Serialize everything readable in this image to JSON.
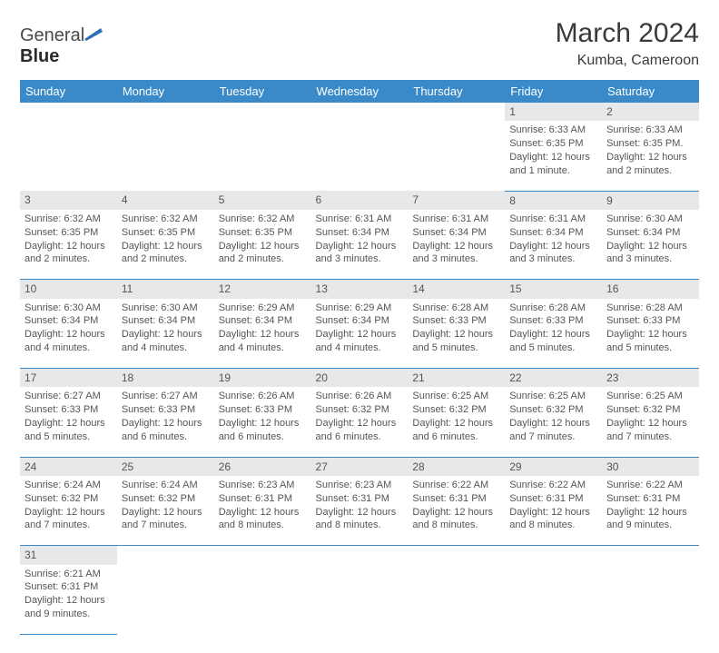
{
  "logo": {
    "word1": "General",
    "word2": "Blue"
  },
  "title": "March 2024",
  "subtitle": "Kumba, Cameroon",
  "colors": {
    "header_bg": "#3a8ac9",
    "header_text": "#ffffff",
    "daynum_bg": "#e8e8e8",
    "cell_border": "#3a8ac9",
    "text": "#555555",
    "logo_flag": "#2e6fb5"
  },
  "weekdays": [
    "Sunday",
    "Monday",
    "Tuesday",
    "Wednesday",
    "Thursday",
    "Friday",
    "Saturday"
  ],
  "weeks": [
    [
      null,
      null,
      null,
      null,
      null,
      {
        "n": "1",
        "lines": [
          "Sunrise: 6:33 AM",
          "Sunset: 6:35 PM",
          "Daylight: 12 hours",
          "and 1 minute."
        ]
      },
      {
        "n": "2",
        "lines": [
          "Sunrise: 6:33 AM",
          "Sunset: 6:35 PM.",
          "Daylight: 12 hours",
          "and 2 minutes."
        ]
      }
    ],
    [
      {
        "n": "3",
        "lines": [
          "Sunrise: 6:32 AM",
          "Sunset: 6:35 PM",
          "Daylight: 12 hours",
          "and 2 minutes."
        ]
      },
      {
        "n": "4",
        "lines": [
          "Sunrise: 6:32 AM",
          "Sunset: 6:35 PM",
          "Daylight: 12 hours",
          "and 2 minutes."
        ]
      },
      {
        "n": "5",
        "lines": [
          "Sunrise: 6:32 AM",
          "Sunset: 6:35 PM",
          "Daylight: 12 hours",
          "and 2 minutes."
        ]
      },
      {
        "n": "6",
        "lines": [
          "Sunrise: 6:31 AM",
          "Sunset: 6:34 PM",
          "Daylight: 12 hours",
          "and 3 minutes."
        ]
      },
      {
        "n": "7",
        "lines": [
          "Sunrise: 6:31 AM",
          "Sunset: 6:34 PM",
          "Daylight: 12 hours",
          "and 3 minutes."
        ]
      },
      {
        "n": "8",
        "lines": [
          "Sunrise: 6:31 AM",
          "Sunset: 6:34 PM",
          "Daylight: 12 hours",
          "and 3 minutes."
        ]
      },
      {
        "n": "9",
        "lines": [
          "Sunrise: 6:30 AM",
          "Sunset: 6:34 PM",
          "Daylight: 12 hours",
          "and 3 minutes."
        ]
      }
    ],
    [
      {
        "n": "10",
        "lines": [
          "Sunrise: 6:30 AM",
          "Sunset: 6:34 PM",
          "Daylight: 12 hours",
          "and 4 minutes."
        ]
      },
      {
        "n": "11",
        "lines": [
          "Sunrise: 6:30 AM",
          "Sunset: 6:34 PM",
          "Daylight: 12 hours",
          "and 4 minutes."
        ]
      },
      {
        "n": "12",
        "lines": [
          "Sunrise: 6:29 AM",
          "Sunset: 6:34 PM",
          "Daylight: 12 hours",
          "and 4 minutes."
        ]
      },
      {
        "n": "13",
        "lines": [
          "Sunrise: 6:29 AM",
          "Sunset: 6:34 PM",
          "Daylight: 12 hours",
          "and 4 minutes."
        ]
      },
      {
        "n": "14",
        "lines": [
          "Sunrise: 6:28 AM",
          "Sunset: 6:33 PM",
          "Daylight: 12 hours",
          "and 5 minutes."
        ]
      },
      {
        "n": "15",
        "lines": [
          "Sunrise: 6:28 AM",
          "Sunset: 6:33 PM",
          "Daylight: 12 hours",
          "and 5 minutes."
        ]
      },
      {
        "n": "16",
        "lines": [
          "Sunrise: 6:28 AM",
          "Sunset: 6:33 PM",
          "Daylight: 12 hours",
          "and 5 minutes."
        ]
      }
    ],
    [
      {
        "n": "17",
        "lines": [
          "Sunrise: 6:27 AM",
          "Sunset: 6:33 PM",
          "Daylight: 12 hours",
          "and 5 minutes."
        ]
      },
      {
        "n": "18",
        "lines": [
          "Sunrise: 6:27 AM",
          "Sunset: 6:33 PM",
          "Daylight: 12 hours",
          "and 6 minutes."
        ]
      },
      {
        "n": "19",
        "lines": [
          "Sunrise: 6:26 AM",
          "Sunset: 6:33 PM",
          "Daylight: 12 hours",
          "and 6 minutes."
        ]
      },
      {
        "n": "20",
        "lines": [
          "Sunrise: 6:26 AM",
          "Sunset: 6:32 PM",
          "Daylight: 12 hours",
          "and 6 minutes."
        ]
      },
      {
        "n": "21",
        "lines": [
          "Sunrise: 6:25 AM",
          "Sunset: 6:32 PM",
          "Daylight: 12 hours",
          "and 6 minutes."
        ]
      },
      {
        "n": "22",
        "lines": [
          "Sunrise: 6:25 AM",
          "Sunset: 6:32 PM",
          "Daylight: 12 hours",
          "and 7 minutes."
        ]
      },
      {
        "n": "23",
        "lines": [
          "Sunrise: 6:25 AM",
          "Sunset: 6:32 PM",
          "Daylight: 12 hours",
          "and 7 minutes."
        ]
      }
    ],
    [
      {
        "n": "24",
        "lines": [
          "Sunrise: 6:24 AM",
          "Sunset: 6:32 PM",
          "Daylight: 12 hours",
          "and 7 minutes."
        ]
      },
      {
        "n": "25",
        "lines": [
          "Sunrise: 6:24 AM",
          "Sunset: 6:32 PM",
          "Daylight: 12 hours",
          "and 7 minutes."
        ]
      },
      {
        "n": "26",
        "lines": [
          "Sunrise: 6:23 AM",
          "Sunset: 6:31 PM",
          "Daylight: 12 hours",
          "and 8 minutes."
        ]
      },
      {
        "n": "27",
        "lines": [
          "Sunrise: 6:23 AM",
          "Sunset: 6:31 PM",
          "Daylight: 12 hours",
          "and 8 minutes."
        ]
      },
      {
        "n": "28",
        "lines": [
          "Sunrise: 6:22 AM",
          "Sunset: 6:31 PM",
          "Daylight: 12 hours",
          "and 8 minutes."
        ]
      },
      {
        "n": "29",
        "lines": [
          "Sunrise: 6:22 AM",
          "Sunset: 6:31 PM",
          "Daylight: 12 hours",
          "and 8 minutes."
        ]
      },
      {
        "n": "30",
        "lines": [
          "Sunrise: 6:22 AM",
          "Sunset: 6:31 PM",
          "Daylight: 12 hours",
          "and 9 minutes."
        ]
      }
    ],
    [
      {
        "n": "31",
        "lines": [
          "Sunrise: 6:21 AM",
          "Sunset: 6:31 PM",
          "Daylight: 12 hours",
          "and 9 minutes."
        ]
      },
      null,
      null,
      null,
      null,
      null,
      null
    ]
  ]
}
